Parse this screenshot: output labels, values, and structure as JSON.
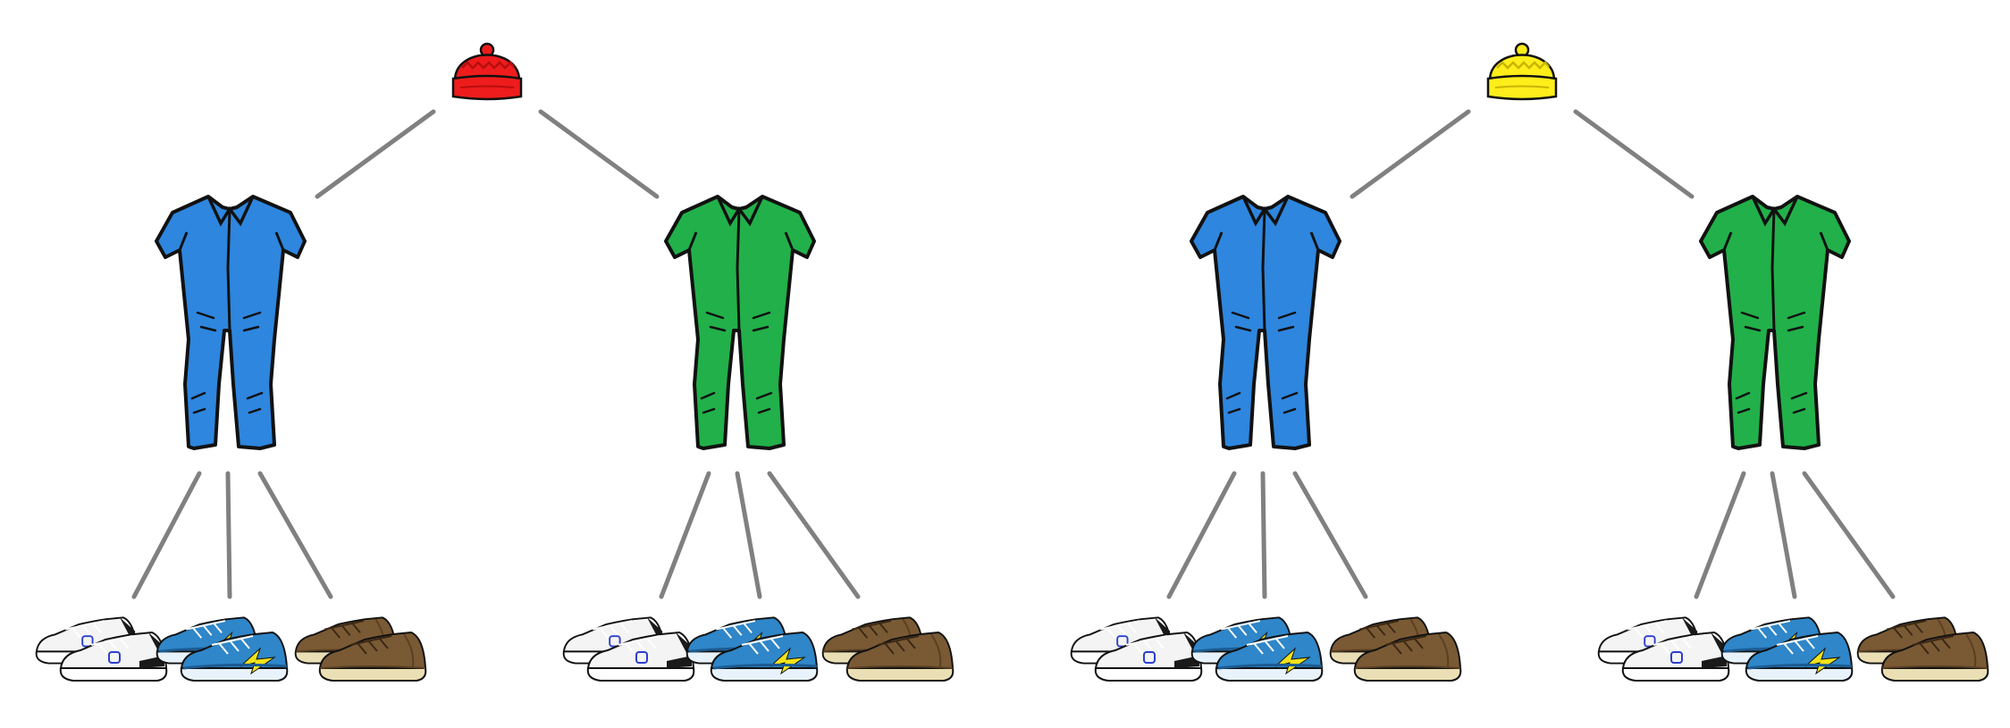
{
  "diagram": {
    "type": "tree",
    "colors": {
      "connector": "#808080",
      "outline": "#111111",
      "white_shoe": "#f4f4f4",
      "white_shoe_trim": "#1a1a1a",
      "white_shoe_logo": "#2a3fd0",
      "blue_shoe": "#2f86c8",
      "blue_shoe_dark": "#1c5b92",
      "blue_shoe_accent": "#f2e21a",
      "brown_shoe": "#7a5a34",
      "brown_shoe_dark": "#5a3f22",
      "brown_shoe_sole": "#eadfb4"
    },
    "trees": [
      {
        "hat": {
          "icon": "hat-icon",
          "color": "#ee1c1c",
          "trim_color": "#b80e0e"
        },
        "outfits": [
          {
            "icon": "jumpsuit-icon",
            "color": "#2e86de",
            "shoes": [
              {
                "icon": "sneaker-white-icon",
                "variant": "white"
              },
              {
                "icon": "sneaker-blue-icon",
                "variant": "blue"
              },
              {
                "icon": "sneaker-brown-icon",
                "variant": "brown"
              }
            ]
          },
          {
            "icon": "jumpsuit-icon",
            "color": "#22b04a",
            "shoes": [
              {
                "icon": "sneaker-white-icon",
                "variant": "white"
              },
              {
                "icon": "sneaker-blue-icon",
                "variant": "blue"
              },
              {
                "icon": "sneaker-brown-icon",
                "variant": "brown"
              }
            ]
          }
        ]
      },
      {
        "hat": {
          "icon": "hat-icon",
          "color": "#ffee1a",
          "trim_color": "#c8b400"
        },
        "outfits": [
          {
            "icon": "jumpsuit-icon",
            "color": "#2e86de",
            "shoes": [
              {
                "icon": "sneaker-white-icon",
                "variant": "white"
              },
              {
                "icon": "sneaker-blue-icon",
                "variant": "blue"
              },
              {
                "icon": "sneaker-brown-icon",
                "variant": "brown"
              }
            ]
          },
          {
            "icon": "jumpsuit-icon",
            "color": "#22b04a",
            "shoes": [
              {
                "icon": "sneaker-white-icon",
                "variant": "white"
              },
              {
                "icon": "sneaker-blue-icon",
                "variant": "blue"
              },
              {
                "icon": "sneaker-brown-icon",
                "variant": "brown"
              }
            ]
          }
        ]
      }
    ]
  }
}
